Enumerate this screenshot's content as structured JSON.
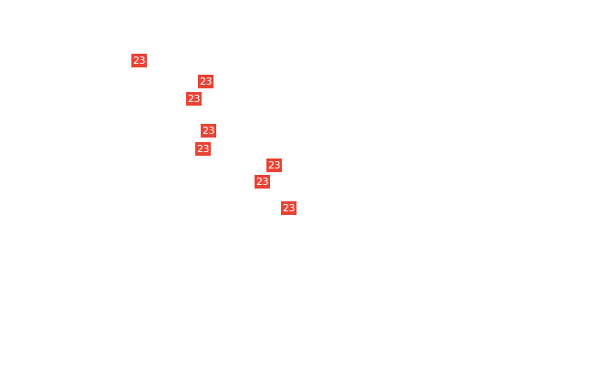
{
  "accent_color": "#ea4335",
  "markers": [
    {
      "label": "23"
    },
    {
      "label": "23"
    },
    {
      "label": "23"
    },
    {
      "label": "23"
    },
    {
      "label": "23"
    },
    {
      "label": "23"
    },
    {
      "label": "23"
    },
    {
      "label": "23"
    }
  ]
}
